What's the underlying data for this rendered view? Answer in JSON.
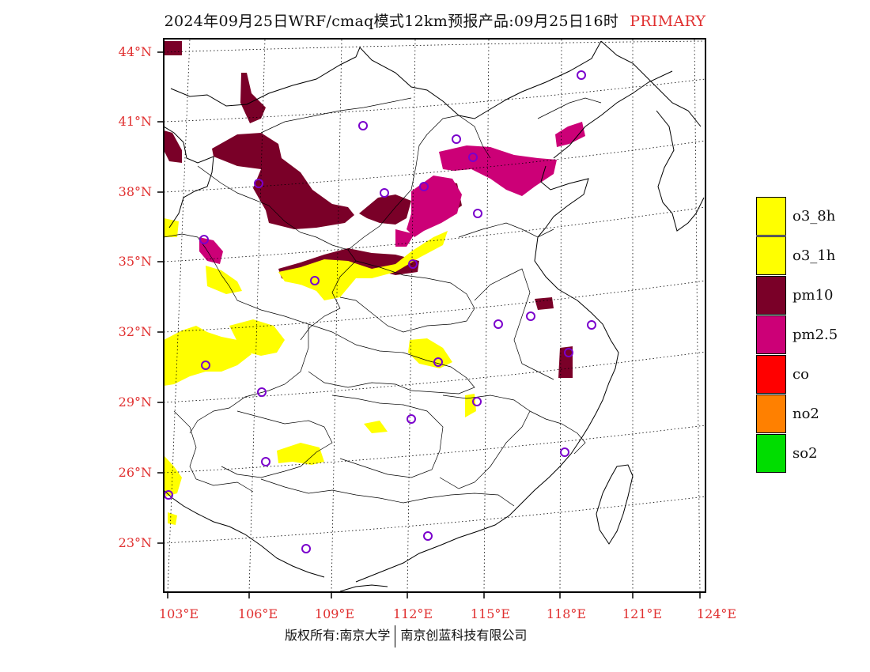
{
  "title": {
    "main": "2024年09月25日WRF/cmaq模式12km预报产品:09月25日16时",
    "tag": "PRIMARY"
  },
  "map": {
    "lat_labels": [
      "44°N",
      "41°N",
      "38°N",
      "35°N",
      "32°N",
      "29°N",
      "26°N",
      "23°N"
    ],
    "lon_labels": [
      "103°E",
      "106°E",
      "109°E",
      "112°E",
      "115°E",
      "118°E",
      "121°E",
      "124°E"
    ]
  },
  "legend": [
    {
      "label": "o3_8h",
      "color": "#ffff00"
    },
    {
      "label": "o3_1h",
      "color": "#ffff00"
    },
    {
      "label": "pm10",
      "color": "#7a0028"
    },
    {
      "label": "pm2.5",
      "color": "#cc0077"
    },
    {
      "label": "co",
      "color": "#ff0000"
    },
    {
      "label": "no2",
      "color": "#ff8000"
    },
    {
      "label": "so2",
      "color": "#00dd00"
    }
  ],
  "colors": {
    "o3": "#ffff00",
    "pm10": "#7a0028",
    "pm25": "#cc0077",
    "station": "#7a00cc",
    "axis_label": "#e03030"
  },
  "footer": {
    "left": "版权所有:南京大学",
    "right": "南京创蓝科技有限公司"
  }
}
